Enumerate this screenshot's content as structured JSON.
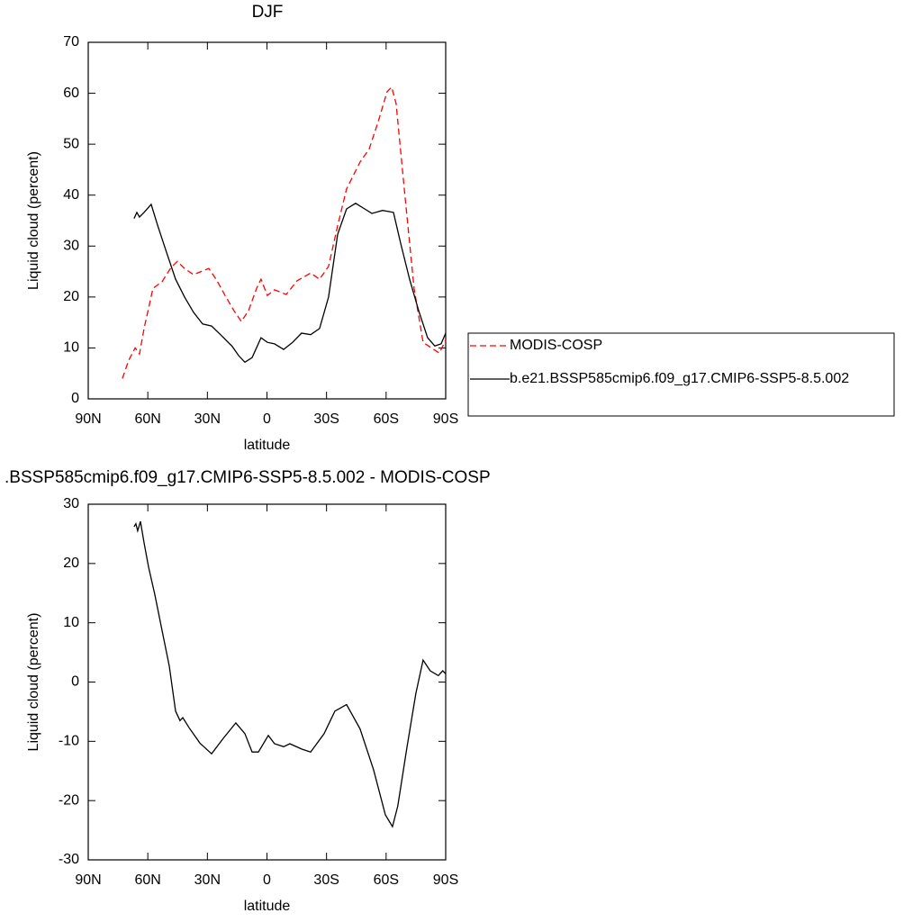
{
  "chart_data": [
    {
      "type": "line",
      "title": "DJF",
      "xlabel": "latitude",
      "ylabel": "Liquid cloud (percent)",
      "xlim": [
        90,
        -90
      ],
      "xticks": [
        {
          "value": 90,
          "label": "90N"
        },
        {
          "value": 60,
          "label": "60N"
        },
        {
          "value": 30,
          "label": "30N"
        },
        0,
        {
          "value": -30,
          "label": "30S"
        },
        {
          "value": -60,
          "label": "60S"
        },
        {
          "value": -90,
          "label": "90S"
        }
      ],
      "ylim": [
        0,
        70
      ],
      "yticks": [
        0,
        10,
        20,
        30,
        40,
        50,
        60,
        70
      ],
      "legend": "right",
      "series": [
        {
          "name": "MODIS-COSP",
          "color": "#ff0000",
          "line_style": "dashed",
          "x": [
            72.8,
            69.6,
            66.4,
            64.2,
            61.9,
            57.4,
            52.8,
            48.3,
            45.1,
            41.5,
            37,
            33.8,
            29.3,
            25.6,
            21.1,
            16.6,
            12.9,
            9.3,
            5.2,
            3,
            -0.2,
            -3.8,
            -9.7,
            -15.2,
            -22,
            -26.5,
            -31,
            -35.6,
            -40.1,
            -46.9,
            -51.4,
            -56,
            -60.5,
            -62.8,
            -65,
            -69.6,
            -74.1,
            -78.6,
            -83.2,
            -86.8,
            -90
          ],
          "values": [
            4,
            7.6,
            10,
            8.8,
            13.8,
            21.7,
            23,
            25.8,
            27,
            25.6,
            24.4,
            24.9,
            25.6,
            23.5,
            20.3,
            17.3,
            15.2,
            17.3,
            21.7,
            23.5,
            20.3,
            21.4,
            20.5,
            23.2,
            24.7,
            23.5,
            26,
            34,
            41.2,
            46.5,
            49,
            54.4,
            60.3,
            61.2,
            58,
            39.4,
            21.7,
            11.1,
            9.9,
            9,
            11.5
          ]
        },
        {
          "name": "b.e21.BSSP585cmip6.f09_g17.CMIP6-SSP5-8.5.002",
          "color": "#000000",
          "line_style": "solid",
          "x": [
            66.9,
            65.5,
            64.2,
            61.9,
            58.3,
            55.1,
            50.6,
            46,
            41.5,
            37,
            32.4,
            27.9,
            23.4,
            17.5,
            14.3,
            11.1,
            7.5,
            3,
            -0.2,
            -3.8,
            -8.4,
            -12.9,
            -17.4,
            -22,
            -26.5,
            -31,
            -35.6,
            -40.1,
            -44.6,
            -49.2,
            -52.8,
            -58.2,
            -63.7,
            -67.3,
            -71.8,
            -76.4,
            -80.9,
            -84.5,
            -87.7,
            -90
          ],
          "values": [
            35.4,
            36.6,
            35.7,
            36.6,
            38.2,
            34.1,
            28.8,
            23.5,
            20,
            17,
            14.7,
            14.3,
            12.6,
            10.3,
            8.5,
            7.2,
            8.1,
            12,
            11.1,
            10.8,
            9.7,
            11.1,
            12.9,
            12.6,
            13.8,
            20,
            32.3,
            37.3,
            38.4,
            37.3,
            36.4,
            37,
            36.6,
            30.6,
            23.5,
            17.3,
            12,
            10.4,
            10.8,
            12.9
          ]
        }
      ]
    },
    {
      "type": "line",
      "title": ".BSSP585cmip6.f09_g17.CMIP6-SSP5-8.5.002 - MODIS-COSP",
      "xlabel": "latitude",
      "ylabel": "Liquid cloud (percent)",
      "xlim": [
        90,
        -90
      ],
      "xticks": [
        {
          "value": 90,
          "label": "90N"
        },
        {
          "value": 60,
          "label": "60N"
        },
        {
          "value": 30,
          "label": "30N"
        },
        0,
        {
          "value": -30,
          "label": "30S"
        },
        {
          "value": -60,
          "label": "60S"
        },
        {
          "value": -90,
          "label": "90S"
        }
      ],
      "ylim": [
        -30,
        30
      ],
      "yticks": [
        -30,
        -20,
        -10,
        0,
        10,
        20,
        30
      ],
      "series": [
        {
          "color": "#000000",
          "line_style": "solid",
          "x": [
            66.9,
            66,
            65.1,
            63.7,
            61.9,
            59.6,
            56.5,
            52.8,
            49.2,
            46,
            43.8,
            42.4,
            39.2,
            33.8,
            27.9,
            22,
            15.7,
            11.1,
            7.5,
            4.3,
            -0.7,
            -3.8,
            -8.4,
            -11.5,
            -17.4,
            -22,
            -28.8,
            -34.2,
            -40.1,
            -46.9,
            -53.7,
            -59.6,
            -63.2,
            -65.9,
            -70.5,
            -75,
            -78.6,
            -82.2,
            -86.3,
            -88.5,
            -90
          ],
          "values": [
            26.2,
            26.7,
            25.5,
            27.1,
            23.5,
            19.4,
            14.8,
            8.7,
            2.7,
            -4.9,
            -6.5,
            -6,
            -7.7,
            -10.3,
            -12.1,
            -9.5,
            -6.9,
            -8.7,
            -11.8,
            -11.8,
            -9,
            -10.4,
            -10.9,
            -10.4,
            -11.3,
            -11.8,
            -8.7,
            -4.9,
            -3.8,
            -7.9,
            -14.8,
            -22.4,
            -24.4,
            -20.9,
            -11,
            -1.9,
            3.7,
            1.9,
            1.1,
            1.9,
            1.4
          ]
        }
      ]
    }
  ]
}
